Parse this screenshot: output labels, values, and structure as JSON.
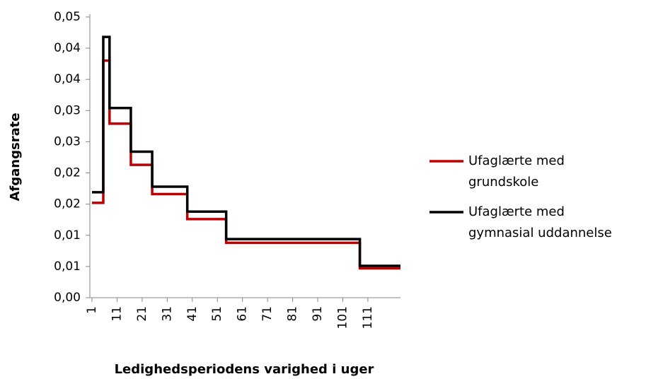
{
  "chart_data": {
    "type": "line",
    "step": "post",
    "x_label": "Ledighedsperiodens varighed i uger",
    "y_label": "Afgangsrate",
    "x": [
      1,
      5.5,
      8,
      16.5,
      25,
      39,
      54.5,
      107.8,
      124
    ],
    "series": [
      {
        "name": "Ufaglærte med grundskole",
        "color": "#c00000",
        "values": [
          0.0152,
          0.038,
          0.0279,
          0.0213,
          0.0166,
          0.0126,
          0.0088,
          0.0047,
          0.0047
        ]
      },
      {
        "name": "Ufaglærte med gymnasial uddannelse",
        "color": "#000000",
        "values": [
          0.0169,
          0.0418,
          0.0304,
          0.0234,
          0.0178,
          0.0138,
          0.0094,
          0.0051,
          0.0051
        ]
      }
    ],
    "xlim": [
      1,
      124
    ],
    "xticks": [
      1,
      11,
      21,
      31,
      41,
      51,
      61,
      71,
      81,
      91,
      101,
      111
    ],
    "ylim": [
      0,
      0.045
    ],
    "yticks": [
      {
        "value": 0,
        "label": "0,00"
      },
      {
        "value": 0.005,
        "label": "0,01"
      },
      {
        "value": 0.01,
        "label": "0,01"
      },
      {
        "value": 0.015,
        "label": "0,02"
      },
      {
        "value": 0.02,
        "label": "0,02"
      },
      {
        "value": 0.025,
        "label": "0,03"
      },
      {
        "value": 0.03,
        "label": "0,03"
      },
      {
        "value": 0.035,
        "label": "0,04"
      },
      {
        "value": 0.04,
        "label": "0,04"
      },
      {
        "value": 0.045,
        "label": "0,05"
      }
    ],
    "legend": "right"
  }
}
